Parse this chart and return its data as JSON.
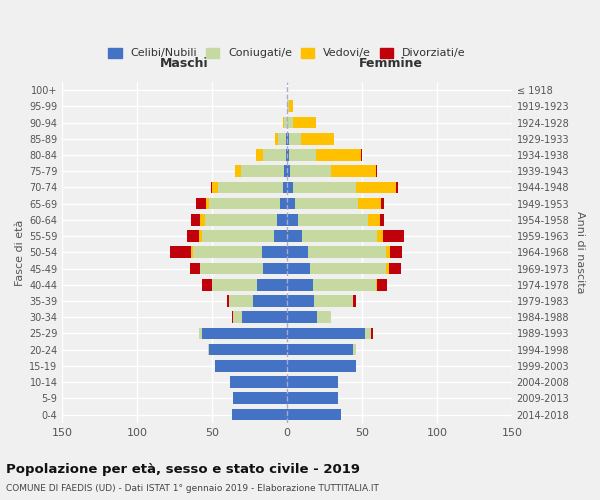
{
  "age_groups": [
    "100+",
    "95-99",
    "90-94",
    "85-89",
    "80-84",
    "75-79",
    "70-74",
    "65-69",
    "60-64",
    "55-59",
    "50-54",
    "45-49",
    "40-44",
    "35-39",
    "30-34",
    "25-29",
    "20-24",
    "15-19",
    "10-14",
    "5-9",
    "0-4"
  ],
  "birth_years": [
    "≤ 1918",
    "1919-1923",
    "1924-1928",
    "1929-1933",
    "1934-1938",
    "1939-1943",
    "1944-1948",
    "1949-1953",
    "1954-1958",
    "1959-1963",
    "1964-1968",
    "1969-1973",
    "1974-1978",
    "1979-1983",
    "1984-1988",
    "1989-1993",
    "1994-1998",
    "1999-2003",
    "2004-2008",
    "2009-2013",
    "2014-2018"
  ],
  "male_celibi": [
    0,
    0,
    0,
    1,
    1,
    2,
    3,
    5,
    7,
    9,
    17,
    16,
    20,
    23,
    30,
    57,
    52,
    48,
    38,
    36,
    37
  ],
  "male_coniugati": [
    0,
    0,
    2,
    5,
    15,
    29,
    43,
    47,
    48,
    48,
    46,
    42,
    30,
    16,
    6,
    2,
    1,
    0,
    0,
    0,
    0
  ],
  "male_vedovi": [
    0,
    0,
    1,
    2,
    5,
    4,
    4,
    2,
    3,
    2,
    1,
    0,
    0,
    0,
    0,
    0,
    0,
    0,
    0,
    0,
    0
  ],
  "male_divorziati": [
    0,
    0,
    0,
    0,
    0,
    0,
    1,
    7,
    6,
    8,
    14,
    7,
    7,
    1,
    1,
    0,
    0,
    0,
    0,
    0,
    0
  ],
  "female_nubili": [
    0,
    0,
    0,
    1,
    1,
    2,
    4,
    5,
    7,
    10,
    14,
    15,
    17,
    18,
    20,
    52,
    44,
    46,
    34,
    34,
    36
  ],
  "female_coniugate": [
    0,
    1,
    4,
    8,
    18,
    27,
    42,
    42,
    47,
    50,
    52,
    51,
    42,
    26,
    9,
    4,
    2,
    0,
    0,
    0,
    0
  ],
  "female_vedove": [
    0,
    3,
    15,
    22,
    30,
    30,
    27,
    16,
    8,
    4,
    3,
    2,
    1,
    0,
    0,
    0,
    0,
    0,
    0,
    0,
    0
  ],
  "female_divorziate": [
    0,
    0,
    0,
    0,
    1,
    1,
    1,
    2,
    3,
    14,
    8,
    8,
    7,
    2,
    0,
    1,
    0,
    0,
    0,
    0,
    0
  ],
  "color_celibi": "#4472c4",
  "color_coniugati": "#c5d9a0",
  "color_vedovi": "#ffc000",
  "color_divorziati": "#c0000b",
  "xlim": 150,
  "title": "Popolazione per età, sesso e stato civile - 2019",
  "subtitle": "COMUNE DI FAEDIS (UD) - Dati ISTAT 1° gennaio 2019 - Elaborazione TUTTITALIA.IT",
  "label_maschi": "Maschi",
  "label_femmine": "Femmine",
  "ylabel_left": "Fasce di età",
  "ylabel_right": "Anni di nascita",
  "legend_labels": [
    "Celibi/Nubili",
    "Coniugati/e",
    "Vedovi/e",
    "Divorziati/e"
  ],
  "bg_color": "#f0f0f0",
  "bar_height": 0.72
}
